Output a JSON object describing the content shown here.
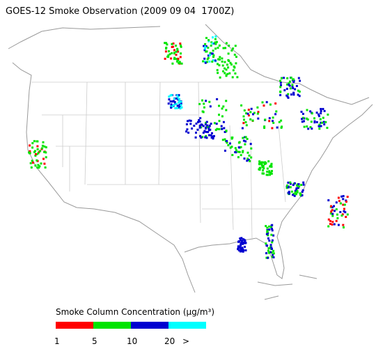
{
  "title": "GOES-12 Smoke Observation (2009 09 04  1700Z)",
  "legend": {
    "title": "Smoke Column Concentration (μg/m³)",
    "colors": [
      "#ff0000",
      "#00e400",
      "#0000d0",
      "#00ffff"
    ],
    "labels": [
      "1",
      "5",
      "10",
      "20",
      ">"
    ]
  }
}
